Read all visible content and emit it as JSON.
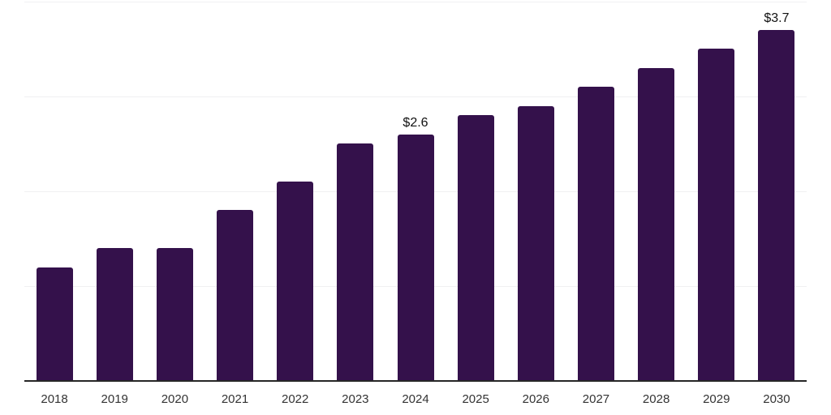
{
  "chart_data": {
    "type": "bar",
    "title": "",
    "xlabel": "",
    "ylabel": "",
    "categories": [
      "2018",
      "2019",
      "2020",
      "2021",
      "2022",
      "2023",
      "2024",
      "2025",
      "2026",
      "2027",
      "2028",
      "2029",
      "2030"
    ],
    "values": [
      1.2,
      1.4,
      1.4,
      1.8,
      2.1,
      2.5,
      2.6,
      2.8,
      2.9,
      3.1,
      3.3,
      3.5,
      3.7
    ],
    "annotations": [
      {
        "category": "2024",
        "text": "$2.6"
      },
      {
        "category": "2030",
        "text": "$3.7"
      }
    ],
    "ylim": [
      0,
      4
    ],
    "grid_values": [
      1,
      2,
      3,
      4
    ],
    "grid": true,
    "legend": false,
    "colors": {
      "bar": "#34114B",
      "grid": "#f0f0f2",
      "axis": "#262626",
      "tick_label": "#333333",
      "data_label": "#111111",
      "background": "#ffffff"
    }
  }
}
